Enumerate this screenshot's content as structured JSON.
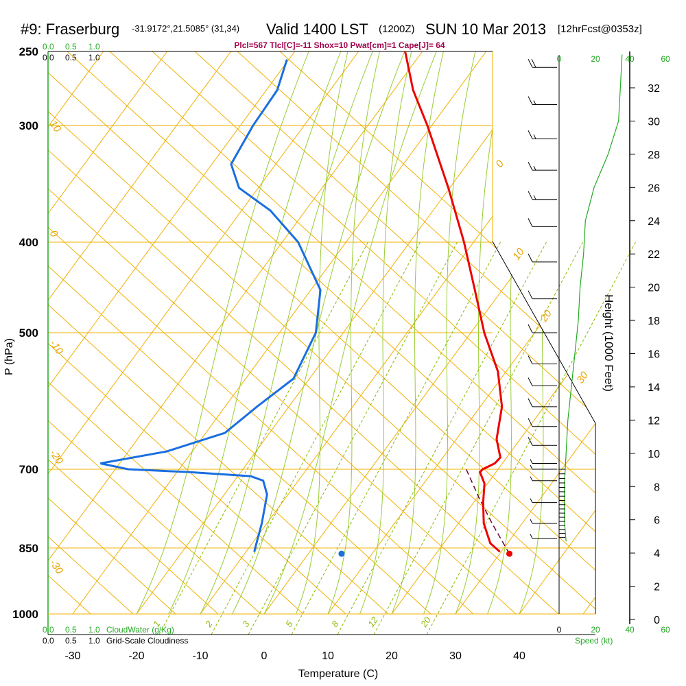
{
  "title": {
    "station": "#9: Fraserburg",
    "coords": "-31.9172°,21.5085° (31,34)",
    "valid": "Valid 1400 LST",
    "utc": "(1200Z)",
    "date": "SUN 10 Mar 2013",
    "forecast": "[12hrFcst@0353z]"
  },
  "indices": "Plcl=567 Tlcl[C]=-11 Shox=10 Pwat[cm]=1 Cape[J]= 64",
  "colors": {
    "temperature": "#ee0000",
    "dewpoint": "#1a6ee0",
    "isotherm": "#f0b000",
    "dry_adiabat": "#99cc33",
    "mixing_ratio": "#88bb00",
    "cloud": "#22aa22",
    "parcel": "#660033"
  },
  "legend": {
    "cloud_scale_top_green": [
      "0.0",
      "0.5",
      "1.0"
    ],
    "cloud_scale_top_black": [
      "0.0",
      "0.5",
      "1.0"
    ],
    "cloud_scale_bottom_green": [
      "0.0",
      "0.5",
      "1.0"
    ],
    "cloud_scale_bottom_black": [
      "0.0",
      "0.5",
      "1.0"
    ],
    "cloudwater_label": "CloudWater (g/Kg)",
    "cloudiness_label": "Grid-Scale Cloudiness",
    "speed_label": "Speed (kt)"
  },
  "chart_data": {
    "type": "skew-t",
    "xlabel": "Temperature (C)",
    "ylabel": "P (hPa)",
    "height_label": "Height (1000 Feet)",
    "x_ticks": [
      -30,
      -20,
      -10,
      0,
      10,
      20,
      30,
      40
    ],
    "p_ticks": [
      250,
      300,
      400,
      500,
      700,
      850,
      1000
    ],
    "height_ticks": [
      0,
      2,
      4,
      6,
      8,
      10,
      12,
      14,
      16,
      18,
      20,
      22,
      24,
      26,
      28,
      30,
      32
    ],
    "speed_ticks_top": [
      {
        "value": "0",
        "color": "green"
      },
      {
        "value": "20",
        "color": "green"
      },
      {
        "value": "40",
        "color": "green"
      },
      {
        "value": "60",
        "color": "green"
      }
    ],
    "speed_ticks_bottom": [
      {
        "value": "0",
        "color": "black"
      },
      {
        "value": "20",
        "color": "green"
      },
      {
        "value": "40",
        "color": "green"
      },
      {
        "value": "60",
        "color": "green"
      }
    ],
    "isotherm_labels": [
      "10",
      "0",
      "-10",
      "-20",
      "-30",
      "0",
      "10",
      "20",
      "30"
    ],
    "mixing_ratio_labels": [
      "1",
      "2",
      "3",
      "5",
      "8",
      "12",
      "20"
    ],
    "temperature_profile": [
      {
        "p": 858,
        "t": 29.8
      },
      {
        "p": 840,
        "t": 27.3
      },
      {
        "p": 800,
        "t": 24.0
      },
      {
        "p": 760,
        "t": 21.5
      },
      {
        "p": 725,
        "t": 19.5
      },
      {
        "p": 705,
        "t": 17.5
      },
      {
        "p": 700,
        "t": 17.6
      },
      {
        "p": 690,
        "t": 18.8
      },
      {
        "p": 680,
        "t": 19.0
      },
      {
        "p": 650,
        "t": 16.3
      },
      {
        "p": 600,
        "t": 13.4
      },
      {
        "p": 550,
        "t": 8.7
      },
      {
        "p": 500,
        "t": 2.1
      },
      {
        "p": 450,
        "t": -4.3
      },
      {
        "p": 400,
        "t": -11.5
      },
      {
        "p": 350,
        "t": -20.2
      },
      {
        "p": 300,
        "t": -30.7
      },
      {
        "p": 275,
        "t": -37.0
      },
      {
        "p": 250,
        "t": -42.7
      }
    ],
    "dewpoint_profile": [
      {
        "p": 858,
        "t": -8.7
      },
      {
        "p": 850,
        "t": -9.0
      },
      {
        "p": 800,
        "t": -10.8
      },
      {
        "p": 745,
        "t": -13.3
      },
      {
        "p": 720,
        "t": -15.5
      },
      {
        "p": 712,
        "t": -18.0
      },
      {
        "p": 705,
        "t": -28.0
      },
      {
        "p": 700,
        "t": -38.0
      },
      {
        "p": 690,
        "t": -43.0
      },
      {
        "p": 670,
        "t": -34.0
      },
      {
        "p": 640,
        "t": -27.0
      },
      {
        "p": 600,
        "t": -25.0
      },
      {
        "p": 560,
        "t": -22.5
      },
      {
        "p": 500,
        "t": -24.3
      },
      {
        "p": 450,
        "t": -28.5
      },
      {
        "p": 400,
        "t": -37.5
      },
      {
        "p": 370,
        "t": -45.5
      },
      {
        "p": 350,
        "t": -53.0
      },
      {
        "p": 330,
        "t": -57.0
      },
      {
        "p": 300,
        "t": -58.0
      },
      {
        "p": 275,
        "t": -58.3
      },
      {
        "p": 255,
        "t": -60.3
      }
    ],
    "surface_temperature": {
      "p": 862,
      "t": 31.5
    },
    "surface_dewpoint": {
      "p": 862,
      "t": 5.2
    },
    "parcel_path": [
      {
        "p": 862,
        "t": 31.5
      },
      {
        "p": 800,
        "t": 25.3
      },
      {
        "p": 750,
        "t": 20.2
      },
      {
        "p": 700,
        "t": 15.0
      }
    ],
    "cloudwater_profile": [
      {
        "p": 250,
        "v": 0.0
      },
      {
        "p": 1000,
        "v": 0.0
      }
    ],
    "cloudiness_profile": [
      {
        "p": 250,
        "v": 0.0
      },
      {
        "p": 1000,
        "v": 0.0
      }
    ],
    "wind_speed_profile": [
      {
        "h": 4.7,
        "kt": 4
      },
      {
        "h": 6,
        "kt": 3
      },
      {
        "h": 8,
        "kt": 3
      },
      {
        "h": 10,
        "kt": 4
      },
      {
        "h": 12,
        "kt": 5
      },
      {
        "h": 14,
        "kt": 7
      },
      {
        "h": 16,
        "kt": 9
      },
      {
        "h": 18,
        "kt": 11
      },
      {
        "h": 20,
        "kt": 12
      },
      {
        "h": 22,
        "kt": 14
      },
      {
        "h": 24,
        "kt": 15
      },
      {
        "h": 26,
        "kt": 20
      },
      {
        "h": 28,
        "kt": 28
      },
      {
        "h": 30,
        "kt": 34
      },
      {
        "h": 32,
        "kt": 35
      },
      {
        "h": 34,
        "kt": 36
      }
    ],
    "wind_barbs": [
      {
        "p": 260,
        "kt": 20
      },
      {
        "p": 285,
        "kt": 15
      },
      {
        "p": 310,
        "kt": 15
      },
      {
        "p": 335,
        "kt": 15
      },
      {
        "p": 360,
        "kt": 15
      },
      {
        "p": 385,
        "kt": 10
      },
      {
        "p": 420,
        "kt": 10
      },
      {
        "p": 460,
        "kt": 10
      },
      {
        "p": 500,
        "kt": 10
      },
      {
        "p": 540,
        "kt": 10
      },
      {
        "p": 570,
        "kt": 10
      },
      {
        "p": 600,
        "kt": 10
      },
      {
        "p": 630,
        "kt": 10
      },
      {
        "p": 660,
        "kt": 10
      },
      {
        "p": 690,
        "kt": 5
      },
      {
        "p": 700,
        "kt": 5
      },
      {
        "p": 720,
        "kt": 5
      },
      {
        "p": 760,
        "kt": 5
      },
      {
        "p": 800,
        "kt": 5
      },
      {
        "p": 830,
        "kt": 5
      }
    ]
  }
}
